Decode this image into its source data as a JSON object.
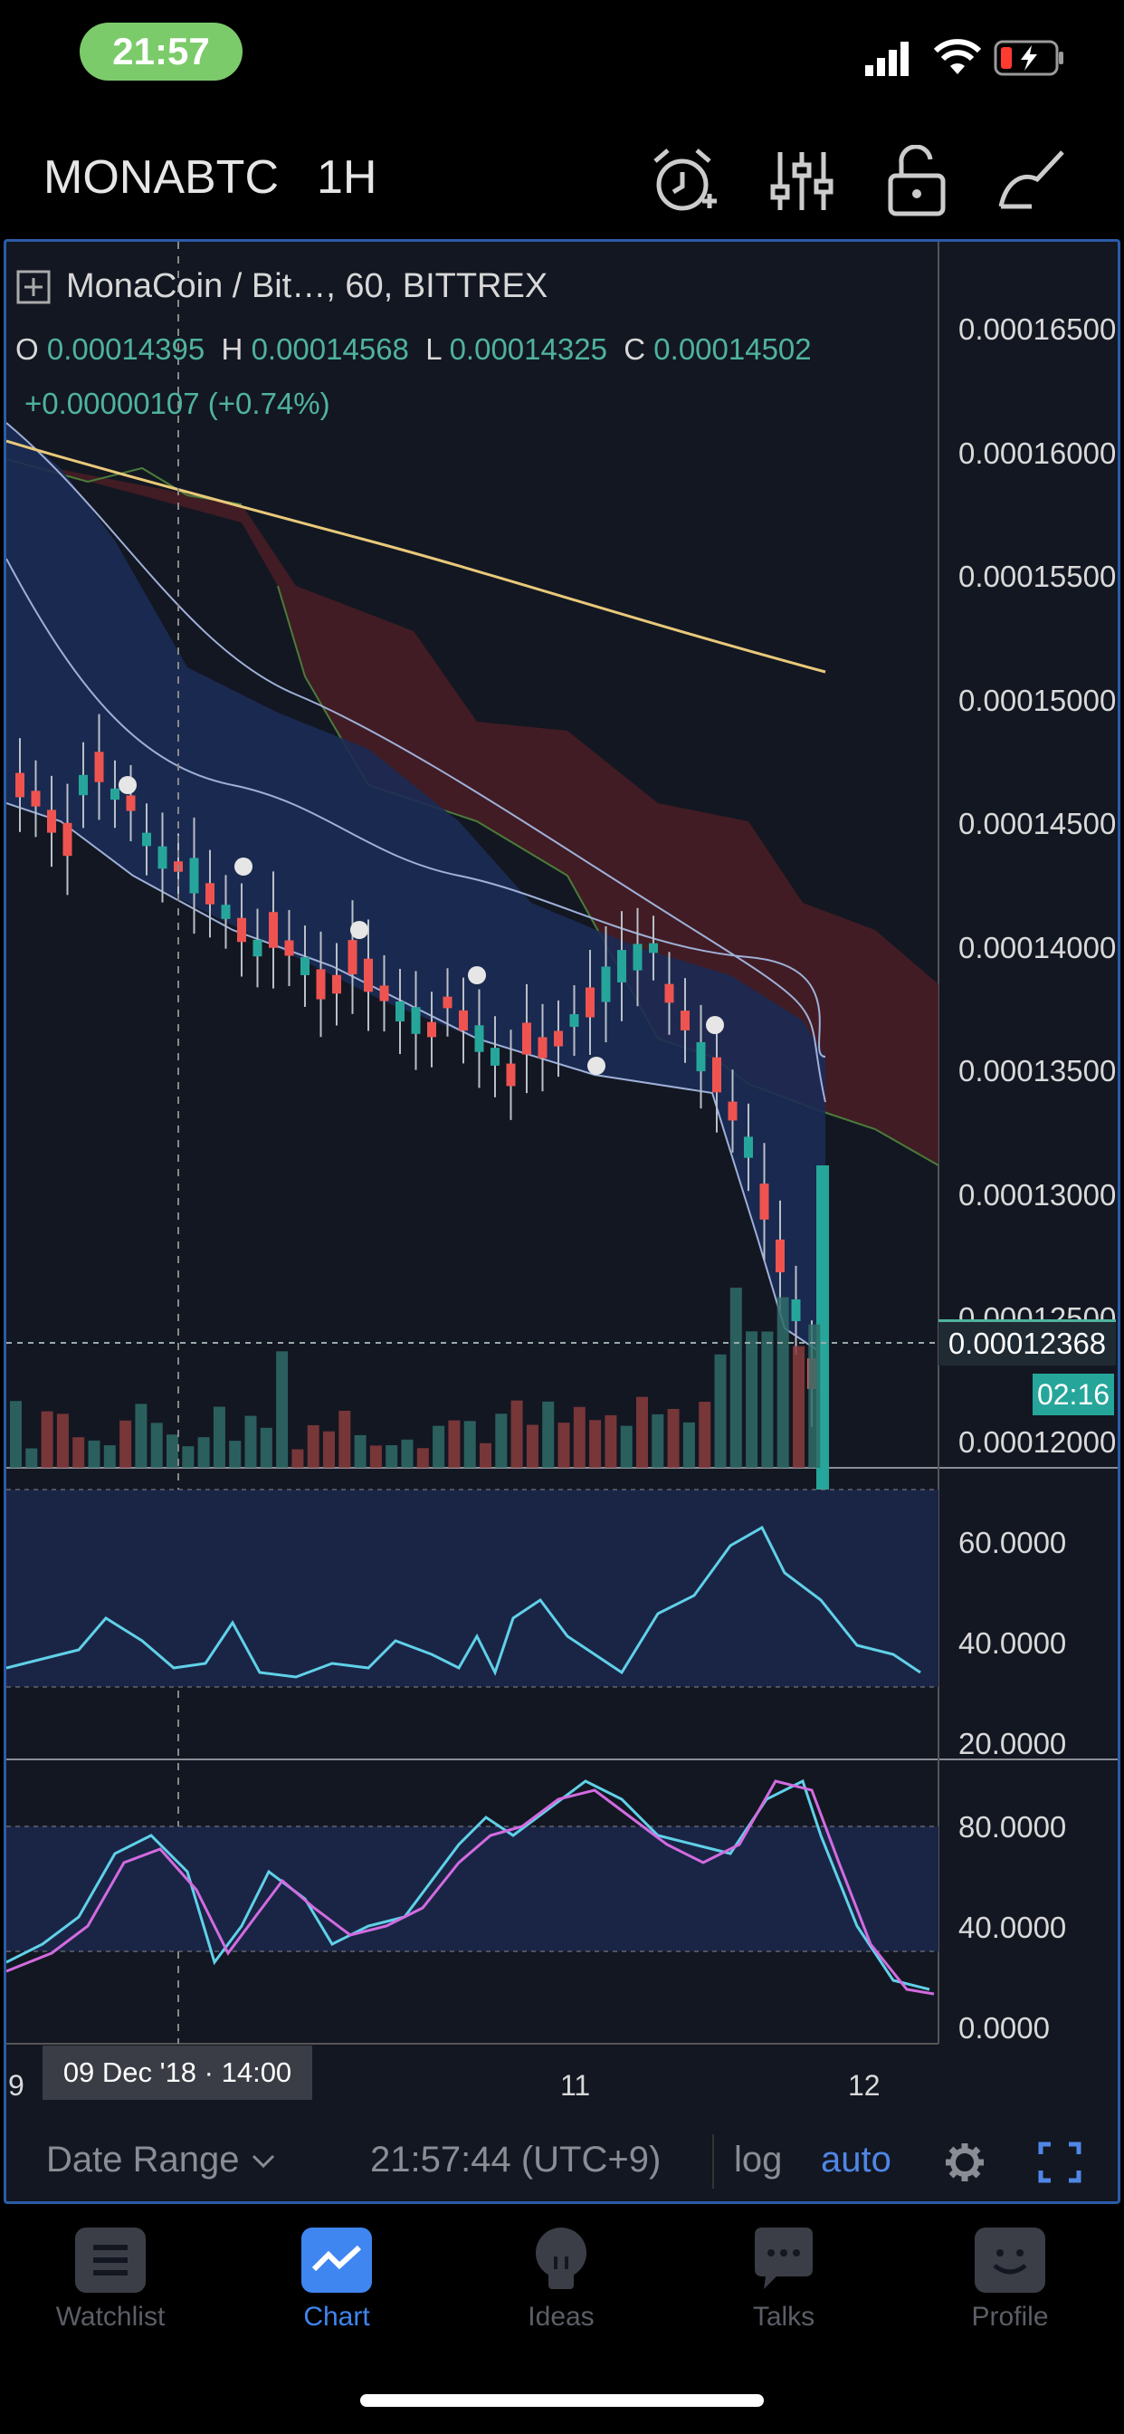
{
  "status_bar": {
    "time": "21:57"
  },
  "header": {
    "symbol": "MONABTC",
    "interval": "1H"
  },
  "legend": {
    "title": "MonaCoin / Bit…, 60, BITTREX",
    "open_key": "O",
    "open": "0.00014395",
    "high_key": "H",
    "high": "0.00014568",
    "low_key": "L",
    "low": "0.00014325",
    "close_key": "C",
    "close": "0.00014502",
    "change": "+0.00000107 (+0.74%)"
  },
  "price_axis": [
    "0.00016500",
    "0.00016000",
    "0.00015500",
    "0.00015000",
    "0.00014500",
    "0.00014000",
    "0.00013500",
    "0.00013000",
    "0.00012500",
    "0.00012000"
  ],
  "current_price": "0.00012368",
  "countdown": "02:16",
  "rsi_axis": [
    "60.0000",
    "40.0000",
    "20.0000"
  ],
  "stoch_axis": [
    "80.0000",
    "40.0000",
    "0.0000"
  ],
  "x_axis": {
    "left_fragment": "9",
    "crosshair_label": "09 Dec '18 · 14:00",
    "tick_11": "11",
    "tick_12": "12"
  },
  "toolbar": {
    "date_range": "Date Range",
    "clock": "21:57:44 (UTC+9)",
    "log": "log",
    "auto": "auto"
  },
  "tabs": [
    {
      "label": "Watchlist",
      "icon": "list-icon"
    },
    {
      "label": "Chart",
      "icon": "chart-icon"
    },
    {
      "label": "Ideas",
      "icon": "lightbulb-icon"
    },
    {
      "label": "Talks",
      "icon": "chat-icon"
    },
    {
      "label": "Profile",
      "icon": "smiley-icon"
    }
  ],
  "colors": {
    "up": "#26a69a",
    "down": "#ef5350",
    "accent": "#2962ff",
    "bg": "#131722"
  }
}
